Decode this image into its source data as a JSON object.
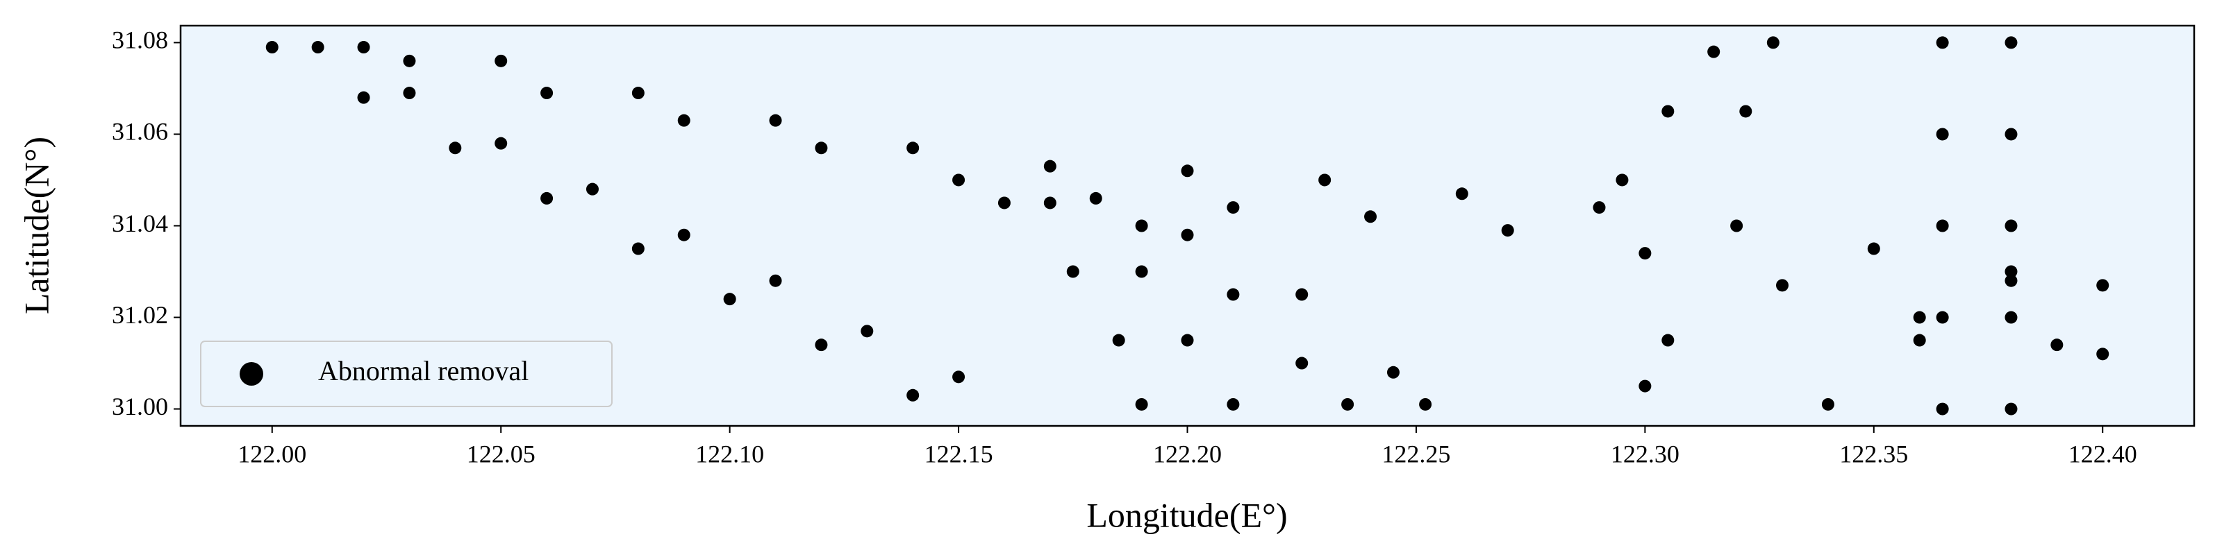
{
  "chart_data": {
    "type": "scatter",
    "xlabel": "Longitude(E°)",
    "ylabel": "Latitude(N°)",
    "xlim": [
      121.98,
      122.42
    ],
    "ylim": [
      30.9963,
      31.0837
    ],
    "xticks": [
      {
        "value": 122.0,
        "label": "122.00"
      },
      122.05,
      {
        "value": 122.1,
        "label": "122.10"
      },
      122.15,
      {
        "value": 122.2,
        "label": "122.20"
      },
      122.25,
      {
        "value": 122.3,
        "label": "122.30"
      },
      122.35,
      {
        "value": 122.4,
        "label": "122.40"
      }
    ],
    "yticks": [
      {
        "value": 31.0,
        "label": "31.00"
      },
      31.02,
      31.04,
      31.06,
      31.08
    ],
    "legend": "lower left",
    "background": "#ecf5fd",
    "series": [
      {
        "name": "Abnormal removal",
        "color": "#000000",
        "x": [
          122.0,
          122.02,
          122.04,
          122.06,
          122.08,
          122.1,
          122.12,
          122.14,
          122.01,
          122.03,
          122.05,
          122.07,
          122.09,
          122.11,
          122.13,
          122.15,
          122.02,
          122.05,
          122.08,
          122.11,
          122.14,
          122.17,
          122.2,
          122.23,
          122.26,
          122.29,
          122.32,
          122.35,
          122.38,
          122.4,
          122.03,
          122.06,
          122.09,
          122.12,
          122.15,
          122.18,
          122.21,
          122.24,
          122.27,
          122.3,
          122.33,
          122.36,
          122.39,
          122.4,
          122.16,
          122.175,
          122.185,
          122.19,
          122.17,
          122.19,
          122.2,
          122.21,
          122.19,
          122.21,
          122.225,
          122.235,
          122.2,
          122.225,
          122.245,
          122.252,
          122.365,
          122.365,
          122.365,
          122.365,
          122.365,
          122.38,
          122.38,
          122.38,
          122.38,
          122.38,
          122.295,
          122.305,
          122.315,
          122.322,
          122.328,
          122.3,
          122.305,
          122.34,
          122.36,
          122.38
        ],
        "values": [
          31.079,
          31.068,
          31.057,
          31.046,
          31.035,
          31.024,
          31.014,
          31.003,
          31.079,
          31.069,
          31.058,
          31.048,
          31.038,
          31.028,
          31.017,
          31.007,
          31.079,
          31.076,
          31.069,
          31.063,
          31.057,
          31.053,
          31.052,
          31.05,
          31.047,
          31.044,
          31.04,
          31.035,
          31.03,
          31.027,
          31.076,
          31.069,
          31.063,
          31.057,
          31.05,
          31.046,
          31.044,
          31.042,
          31.039,
          31.034,
          31.027,
          31.02,
          31.014,
          31.012,
          31.045,
          31.03,
          31.015,
          31.001,
          31.045,
          31.03,
          31.015,
          31.001,
          31.04,
          31.025,
          31.01,
          31.001,
          31.038,
          31.025,
          31.008,
          31.001,
          31.08,
          31.06,
          31.04,
          31.02,
          31.0,
          31.08,
          31.06,
          31.04,
          31.02,
          31.0,
          31.05,
          31.065,
          31.078,
          31.065,
          31.08,
          31.005,
          31.015,
          31.001,
          31.015,
          31.028
        ]
      }
    ]
  }
}
